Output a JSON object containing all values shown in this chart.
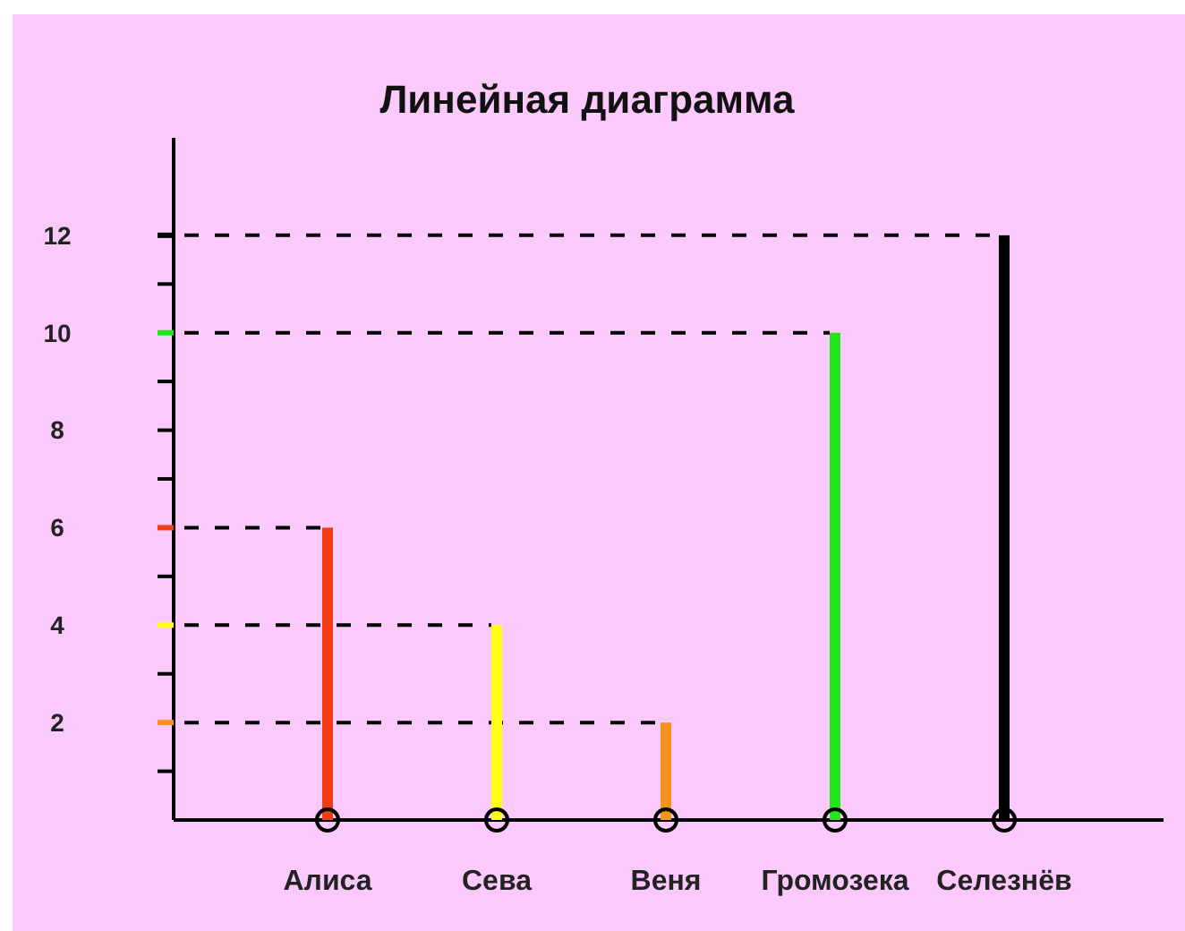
{
  "chart_data": {
    "type": "bar",
    "title": "Линейная диаграмма",
    "categories": [
      "Алиса",
      "Сева",
      "Веня",
      "Громозека",
      "Селезнёв"
    ],
    "values": [
      6,
      4,
      2,
      10,
      12
    ],
    "colors": [
      "#f23c16",
      "#ffff14",
      "#f7941d",
      "#22e61c",
      "#000000"
    ],
    "ylim": [
      0,
      14
    ],
    "yticks": [
      {
        "value": 1,
        "label": null
      },
      2,
      {
        "value": 3,
        "label": null
      },
      4,
      {
        "value": 5,
        "label": null
      },
      6,
      {
        "value": 7,
        "label": null
      },
      8,
      {
        "value": 9,
        "label": null
      },
      10,
      {
        "value": 11,
        "label": null
      },
      12
    ],
    "ref_lines": [
      {
        "axis": "y",
        "value": 12,
        "color": "#000000",
        "line_style": "dashed"
      },
      {
        "axis": "y",
        "value": 10,
        "color": "#000000",
        "line_style": "dashed"
      },
      {
        "axis": "y",
        "value": 6,
        "color": "#000000",
        "line_style": "dashed"
      },
      {
        "axis": "y",
        "value": 4,
        "color": "#000000",
        "line_style": "dashed"
      },
      {
        "axis": "y",
        "value": 2,
        "color": "#000000",
        "line_style": "dashed"
      }
    ]
  }
}
